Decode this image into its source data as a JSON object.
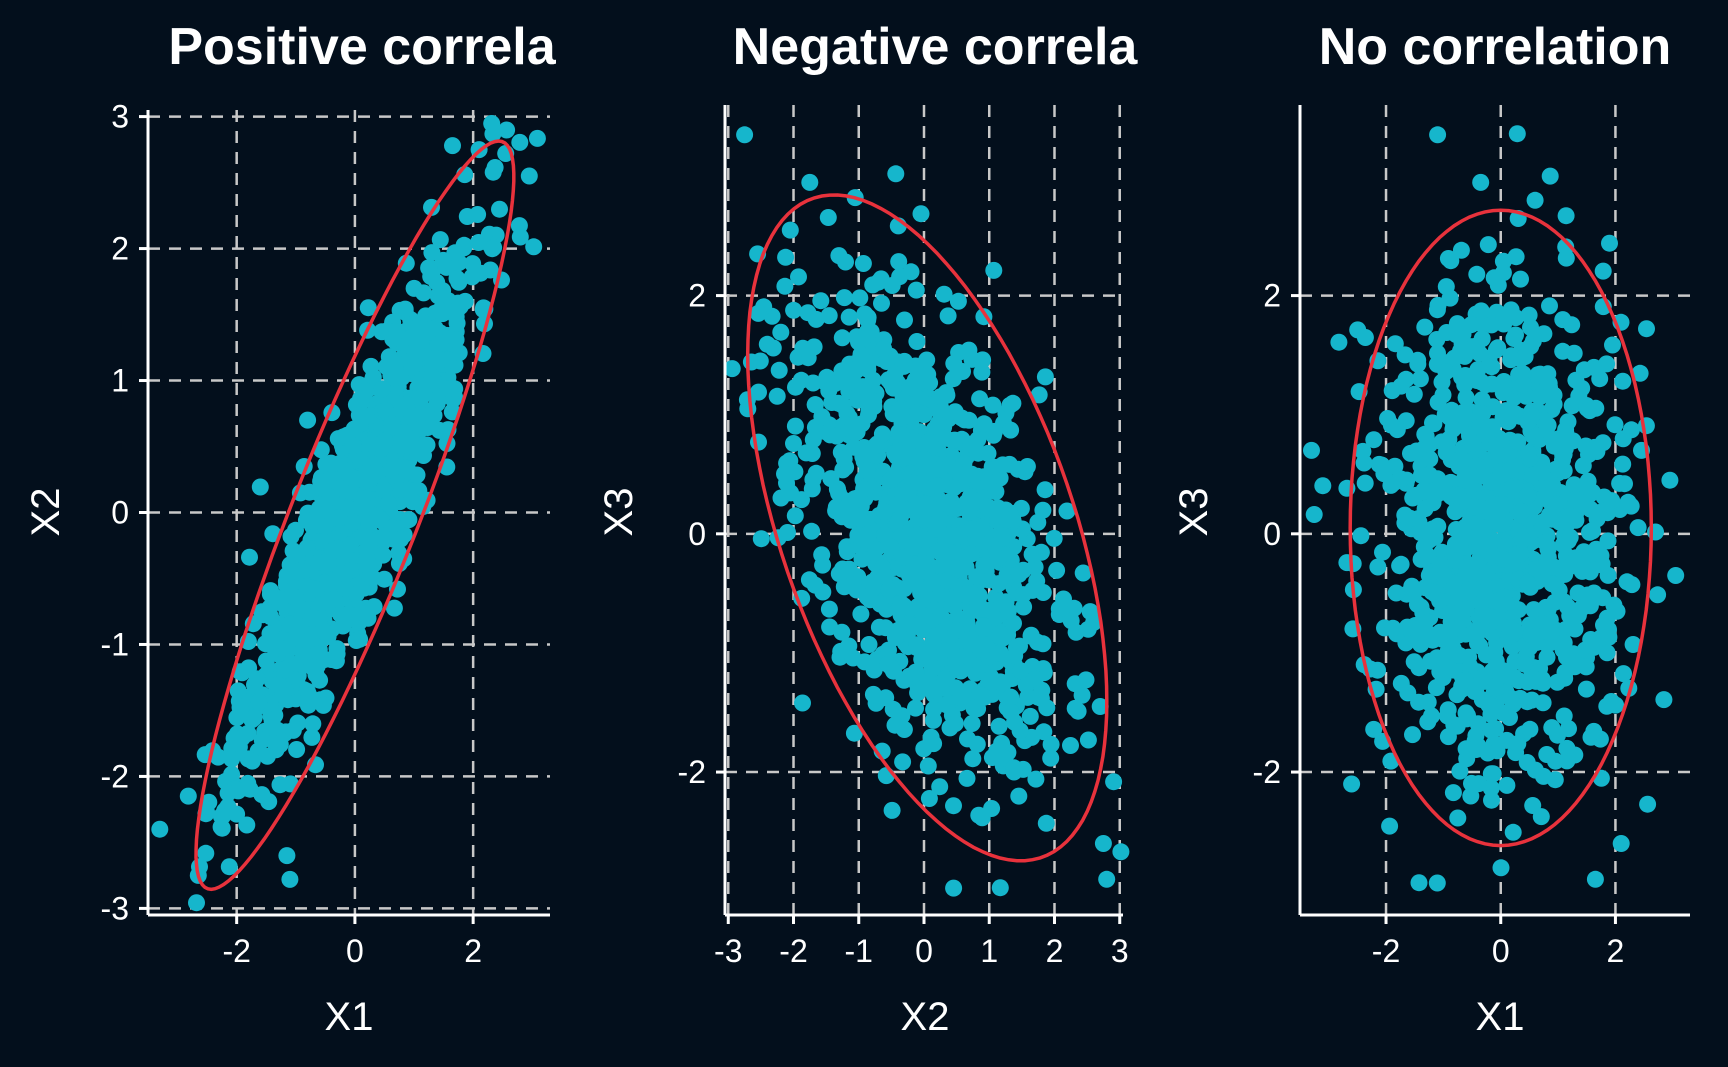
{
  "chart_data": [
    {
      "type": "scatter",
      "title": "Positive correla",
      "xlabel": "X1",
      "ylabel": "X2",
      "xlim": [
        -3.5,
        3.3
      ],
      "ylim": [
        -3.05,
        3.05
      ],
      "xticks": [
        "-2",
        "0",
        "2"
      ],
      "xtick_values": [
        -2,
        0,
        2
      ],
      "yticks": [
        "-3",
        "-2",
        "-1",
        "0",
        "1",
        "2",
        "3"
      ],
      "ytick_values": [
        -3,
        -2,
        -1,
        0,
        1,
        2,
        3
      ],
      "grid": true,
      "series": [
        {
          "seed": 11,
          "n": 1000,
          "sx": 1.0,
          "sy": 1.0,
          "rho": 0.9
        }
      ],
      "outliers": [
        [
          -3.3,
          -2.4
        ],
        [
          -2.65,
          -2.75
        ],
        [
          -1.1,
          -2.78
        ],
        [
          -1.15,
          -2.6
        ],
        [
          2.95,
          2.55
        ],
        [
          1.65,
          2.78
        ],
        [
          2.1,
          2.75
        ],
        [
          2.55,
          2.72
        ],
        [
          -0.8,
          0.7
        ]
      ],
      "ellipse": {
        "cx": 0.0,
        "cy": -0.02,
        "sx": 1.28,
        "sy": 1.35,
        "rho": 0.905,
        "k": 2.1
      }
    },
    {
      "type": "scatter",
      "title": "Negative correla",
      "xlabel": "X2",
      "ylabel": "X3",
      "xlim": [
        -3.05,
        3.05
      ],
      "ylim": [
        -3.2,
        3.6
      ],
      "xticks": [
        "-3",
        "-2",
        "-1",
        "0",
        "1",
        "2",
        "3"
      ],
      "xtick_values": [
        -3,
        -2,
        -1,
        0,
        1,
        2,
        3
      ],
      "yticks": [
        "-2",
        "0",
        "2"
      ],
      "ytick_values": [
        -2,
        0,
        2
      ],
      "grid": true,
      "series": [
        {
          "seed": 23,
          "n": 1000,
          "sx": 1.0,
          "sy": 1.0,
          "rho": -0.5
        }
      ],
      "outliers": [
        [
          -2.75,
          3.35
        ],
        [
          -2.7,
          1.05
        ],
        [
          -2.55,
          2.35
        ],
        [
          2.75,
          -2.6
        ],
        [
          2.8,
          -2.9
        ],
        [
          2.7,
          -1.45
        ],
        [
          -0.2,
          2.2
        ],
        [
          -1.75,
          2.95
        ]
      ],
      "ellipse": {
        "cx": 0.05,
        "cy": 0.05,
        "sx": 1.28,
        "sy": 1.3,
        "rho": -0.52,
        "k": 2.15
      }
    },
    {
      "type": "scatter",
      "title": "No correlation",
      "xlabel": "X1",
      "ylabel": "X3",
      "xlim": [
        -3.5,
        3.3
      ],
      "ylim": [
        -3.2,
        3.6
      ],
      "xticks": [
        "-2",
        "0",
        "2"
      ],
      "xtick_values": [
        -2,
        0,
        2
      ],
      "yticks": [
        "-2",
        "0",
        "2"
      ],
      "ytick_values": [
        -2,
        0,
        2
      ],
      "grid": true,
      "series": [
        {
          "seed": 37,
          "n": 1000,
          "sx": 1.0,
          "sy": 1.0,
          "rho": 0.0
        }
      ],
      "outliers": [
        [
          -3.3,
          0.7
        ],
        [
          -1.1,
          3.35
        ],
        [
          -0.35,
          2.95
        ],
        [
          0.6,
          2.8
        ],
        [
          3.05,
          -0.35
        ],
        [
          2.95,
          0.45
        ],
        [
          1.65,
          -2.9
        ],
        [
          2.1,
          -2.6
        ],
        [
          -2.6,
          -2.1
        ]
      ],
      "ellipse": {
        "cx": 0.0,
        "cy": 0.05,
        "sx": 1.25,
        "sy": 1.27,
        "rho": 0.0,
        "k": 2.1
      }
    }
  ]
}
